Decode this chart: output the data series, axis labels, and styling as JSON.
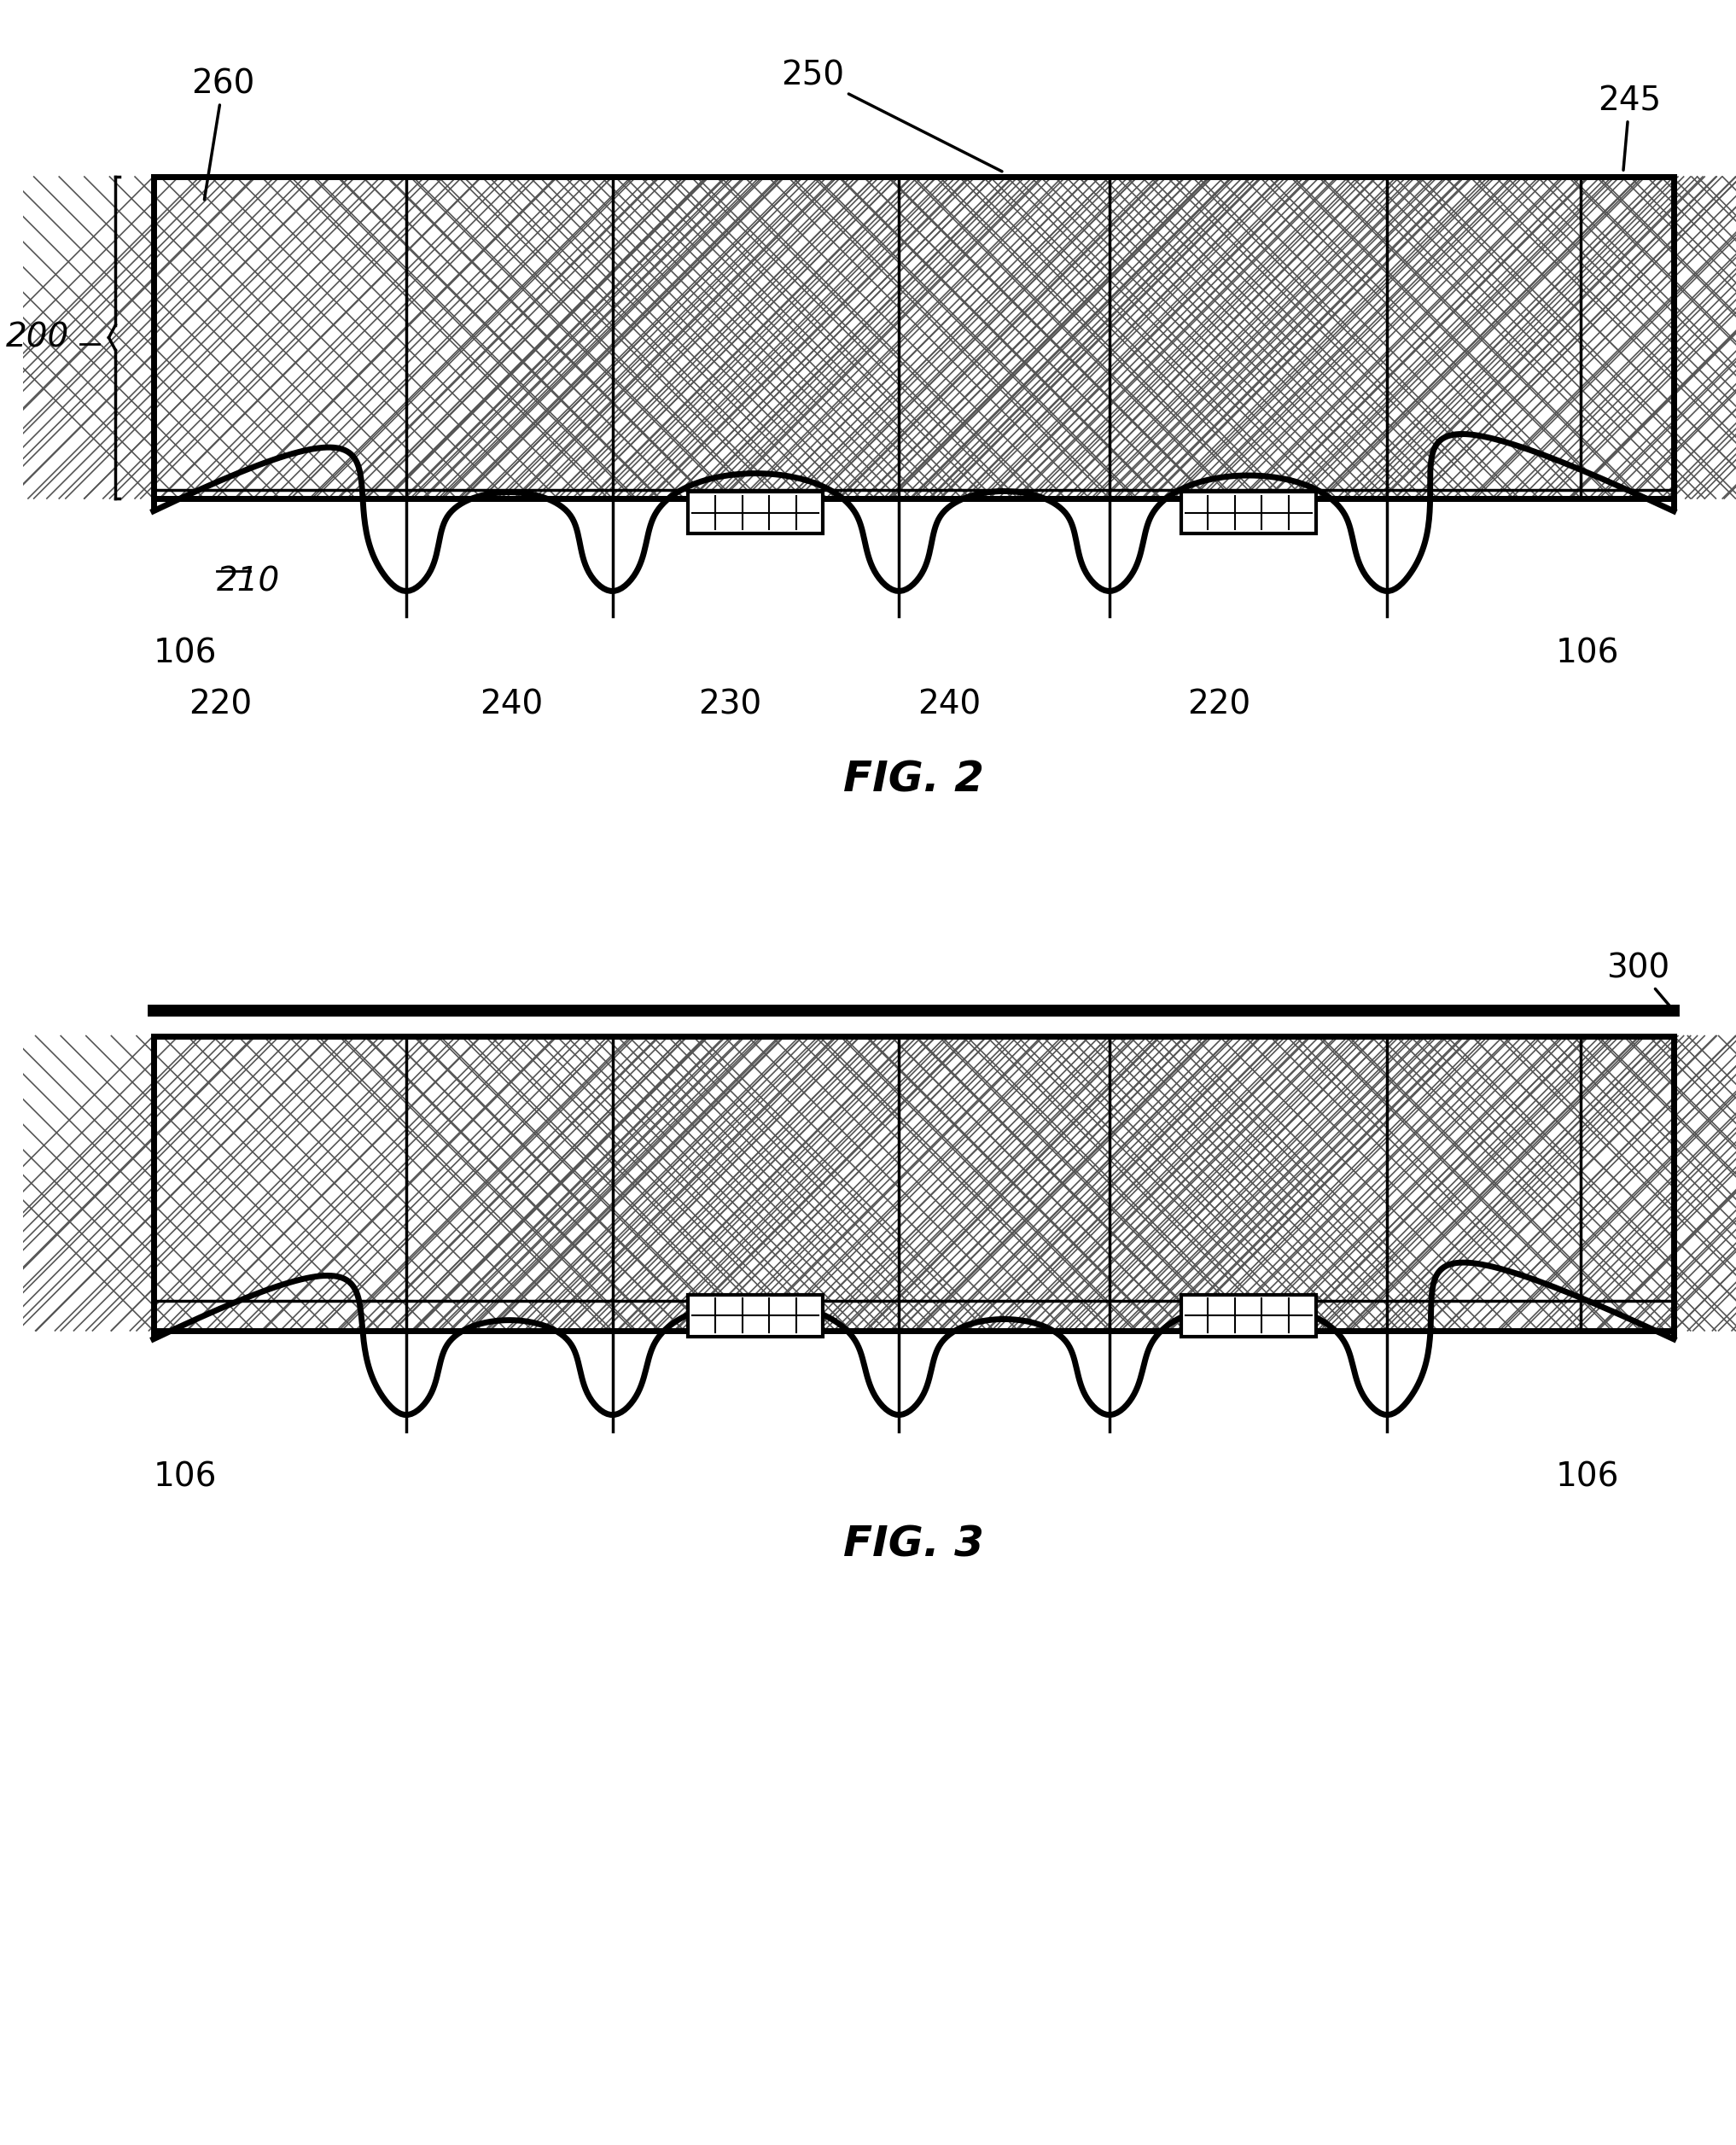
{
  "fig_width": 20.34,
  "fig_height": 25.13,
  "bg_color": "#ffffff",
  "line_color": "#000000",
  "fig2": {
    "title": "FIG. 2",
    "label_200": "200",
    "label_210": "210",
    "label_220": "220",
    "label_230": "230",
    "label_240": "240",
    "label_245": "245",
    "label_250": "250",
    "label_260": "260",
    "label_106": "106"
  },
  "fig3": {
    "title": "FIG. 3",
    "label_300": "300",
    "label_106": "106"
  }
}
